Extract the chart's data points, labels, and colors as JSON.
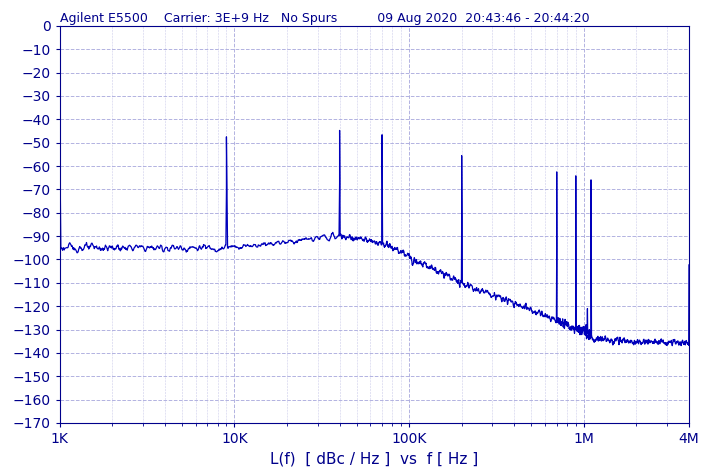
{
  "title": "Agilent E5500    Carrier: 3E+9 Hz   No Spurs          09 Aug 2020  20:43:46 - 20:44:20",
  "xlabel": "L(f)  [ dBc / Hz ]  vs  f [ Hz ]",
  "xlim_log": [
    1000,
    4000000
  ],
  "ylim_bottom": -170,
  "ylim_top": 0,
  "yticks": [
    0,
    -10,
    -20,
    -30,
    -40,
    -50,
    -60,
    -70,
    -80,
    -90,
    -100,
    -110,
    -120,
    -130,
    -140,
    -150,
    -160,
    -170
  ],
  "xtick_positions": [
    1000,
    10000,
    100000,
    1000000,
    4000000
  ],
  "xtick_labels": [
    "1K",
    "10K",
    "100K",
    "1M",
    "4M"
  ],
  "line_color": "#0000bb",
  "bg_color": "#ffffff",
  "title_color": "#00008B",
  "axes_color": "#00008B",
  "grid_color": "#aaaadd",
  "title_fontsize": 9,
  "tick_fontsize": 10,
  "xlabel_fontsize": 11,
  "noise_segments": [
    {
      "f_start": 1000,
      "f_end": 9000,
      "n_pts": 300,
      "base_start": -95,
      "base_end": -95,
      "noise_std": 1.5
    },
    {
      "f_start": 9000,
      "f_end": 40000,
      "n_pts": 200,
      "base_start": -95,
      "base_end": -90,
      "noise_std": 1.2
    },
    {
      "f_start": 40000,
      "f_end": 70000,
      "n_pts": 150,
      "base_start": -90,
      "base_end": -93,
      "noise_std": 1.2
    },
    {
      "f_start": 70000,
      "f_end": 200000,
      "n_pts": 300,
      "base_start": -93,
      "base_end": -110,
      "noise_std": 1.5
    },
    {
      "f_start": 200000,
      "f_end": 700000,
      "n_pts": 300,
      "base_start": -110,
      "base_end": -126,
      "noise_std": 1.5
    },
    {
      "f_start": 700000,
      "f_end": 900000,
      "n_pts": 150,
      "base_start": -126,
      "base_end": -130,
      "noise_std": 2.0
    },
    {
      "f_start": 900000,
      "f_end": 1100000,
      "n_pts": 150,
      "base_start": -130,
      "base_end": -132,
      "noise_std": 2.5
    },
    {
      "f_start": 1100000,
      "f_end": 4000000,
      "n_pts": 400,
      "base_start": -134,
      "base_end": -136,
      "noise_std": 1.5
    }
  ],
  "spur_freq": 1050000,
  "spur_peak": -121
}
